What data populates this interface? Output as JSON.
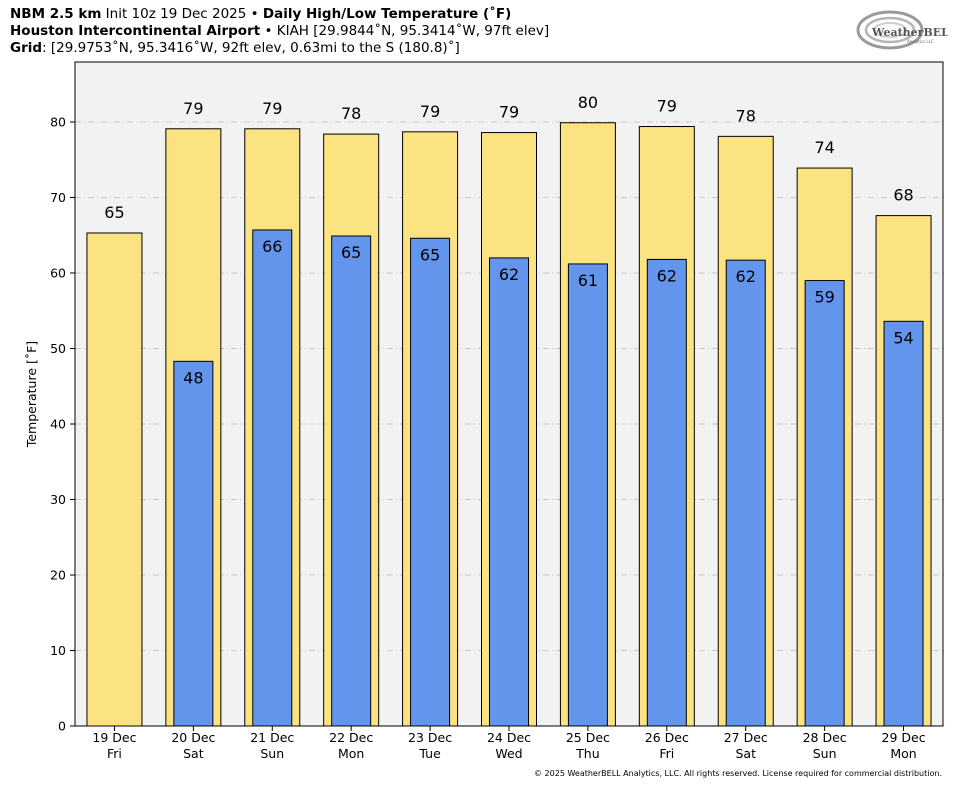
{
  "header": {
    "line1": {
      "bold_a": "NBM 2.5 km",
      "normal_a": " Init 10z 19 Dec 2025 • ",
      "bold_b": "Daily High/Low Temperature (˚F)"
    },
    "line2": {
      "bold_a": "Houston Intercontinental Airport",
      "normal_a": " • KIAH [29.9844˚N, 95.3414˚W, 97ft elev]"
    },
    "line3": {
      "bold_a": "Grid",
      "normal_a": ": [29.9753˚N, 95.3416˚W, 92ft elev, 0.63mi to the S (180.8)˚]"
    }
  },
  "logo": {
    "text": "WeatherBELL",
    "subtext": "Analytics LLC"
  },
  "copyright": "© 2025 WeatherBELL Analytics, LLC. All rights reserved. License required for commercial distribution.",
  "colors": {
    "high": "#fce381",
    "low": "#6495ed",
    "plot_bg": "#f2f2f2",
    "grid": "#bbbbbb"
  },
  "chart_data": {
    "type": "bar",
    "categories": [
      "19 Dec\nFri",
      "20 Dec\nSat",
      "21 Dec\nSun",
      "22 Dec\nMon",
      "23 Dec\nTue",
      "24 Dec\nWed",
      "25 Dec\nThu",
      "26 Dec\nFri",
      "27 Dec\nSat",
      "28 Dec\nSun",
      "29 Dec\nMon"
    ],
    "x_tick_lines": [
      [
        "19 Dec",
        "Fri"
      ],
      [
        "20 Dec",
        "Sat"
      ],
      [
        "21 Dec",
        "Sun"
      ],
      [
        "22 Dec",
        "Mon"
      ],
      [
        "23 Dec",
        "Tue"
      ],
      [
        "24 Dec",
        "Wed"
      ],
      [
        "25 Dec",
        "Thu"
      ],
      [
        "26 Dec",
        "Fri"
      ],
      [
        "27 Dec",
        "Sat"
      ],
      [
        "28 Dec",
        "Sun"
      ],
      [
        "29 Dec",
        "Mon"
      ]
    ],
    "series": [
      {
        "key": "high",
        "values": [
          65.3,
          79.1,
          79.1,
          78.4,
          78.7,
          78.6,
          79.9,
          79.4,
          78.1,
          73.9,
          67.6
        ],
        "labels": [
          "65",
          "79",
          "79",
          "78",
          "79",
          "79",
          "80",
          "79",
          "78",
          "74",
          "68"
        ]
      },
      {
        "key": "low",
        "values": [
          null,
          48.3,
          65.7,
          64.9,
          64.6,
          62.0,
          61.2,
          61.8,
          61.7,
          59.0,
          53.6
        ],
        "labels": [
          null,
          "48",
          "66",
          "65",
          "65",
          "62",
          "61",
          "62",
          "62",
          "59",
          "54"
        ]
      }
    ],
    "ylabel": "Temperature [˚F]",
    "ylim": [
      0,
      88
    ],
    "yticks": [
      0,
      10,
      20,
      30,
      40,
      50,
      60,
      70,
      80
    ],
    "grid": true,
    "legend": "none"
  }
}
